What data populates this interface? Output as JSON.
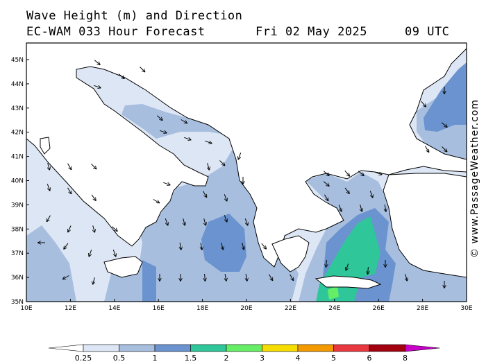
{
  "header": {
    "title": "Wave Height (m) and Direction",
    "model": "EC-WAM 033 Hour Forecast",
    "date": "Fri 02 May 2025",
    "time": "09 UTC"
  },
  "credit": "© www.PassageWeather.com",
  "axes": {
    "lat_labels": [
      "45N",
      "44N",
      "43N",
      "42N",
      "41N",
      "40N",
      "39N",
      "38N",
      "37N",
      "36N",
      "35N"
    ],
    "lon_labels": [
      "10E",
      "12E",
      "14E",
      "16E",
      "18E",
      "20E",
      "22E",
      "24E",
      "26E",
      "28E",
      "30E"
    ]
  },
  "legend": {
    "labels": [
      "0.25",
      "0.5",
      "1",
      "1.5",
      "2",
      "3",
      "4",
      "5",
      "6",
      "8"
    ],
    "colors": [
      "#ffffff",
      "#dde6f4",
      "#a7bedf",
      "#6a93cf",
      "#2fc79a",
      "#66ee66",
      "#f5dd00",
      "#f39a00",
      "#e8383f",
      "#a30010",
      "#c800c8"
    ]
  },
  "colors": {
    "land": "#ffffff",
    "sea_025_05": "#dde6f4",
    "sea_05_1": "#a7bedf",
    "sea_1_15": "#6a93cf",
    "sea_15_2": "#2fc79a",
    "sea_2_3": "#66ee66"
  }
}
